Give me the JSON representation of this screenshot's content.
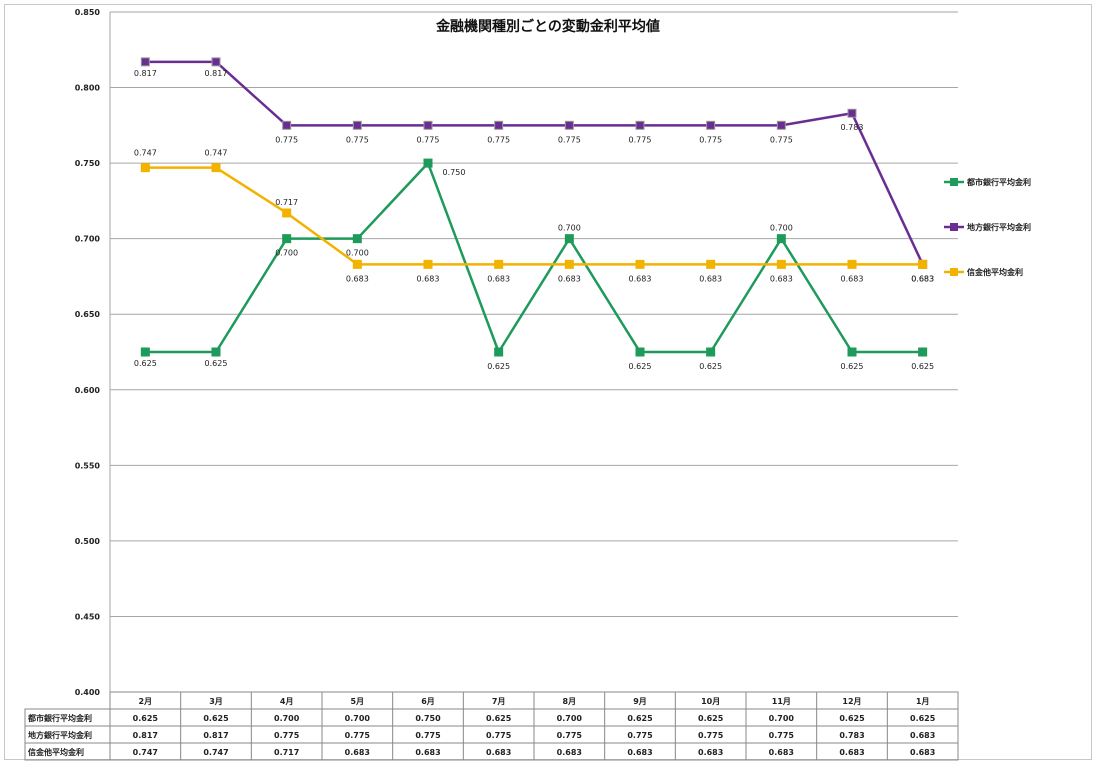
{
  "chart_data": {
    "type": "line",
    "title": "金融機関種別ごとの変動金利平均値",
    "categories": [
      "2月",
      "3月",
      "4月",
      "5月",
      "6月",
      "7月",
      "8月",
      "9月",
      "10月",
      "11月",
      "12月",
      "1月"
    ],
    "ylim": [
      0.4,
      0.85
    ],
    "yticks": [
      "0.400",
      "0.450",
      "0.500",
      "0.550",
      "0.600",
      "0.650",
      "0.700",
      "0.750",
      "0.800",
      "0.850"
    ],
    "grid": true,
    "legend_position": "right",
    "series": [
      {
        "name": "都市銀行平均金利",
        "color": "#1e9a5a",
        "values": [
          0.625,
          0.625,
          0.7,
          0.7,
          0.75,
          0.625,
          0.7,
          0.625,
          0.625,
          0.7,
          0.625,
          0.625
        ],
        "labels": [
          "0.625",
          "0.625",
          "0.700",
          "0.700",
          "0.750",
          "0.625",
          "0.700",
          "0.625",
          "0.625",
          "0.700",
          "0.625",
          "0.625"
        ]
      },
      {
        "name": "地方銀行平均金利",
        "color": "#6a2d92",
        "values": [
          0.817,
          0.817,
          0.775,
          0.775,
          0.775,
          0.775,
          0.775,
          0.775,
          0.775,
          0.775,
          0.783,
          0.683
        ],
        "labels": [
          "0.817",
          "0.817",
          "0.775",
          "0.775",
          "0.775",
          "0.775",
          "0.775",
          "0.775",
          "0.775",
          "0.775",
          "0.783",
          "0.683"
        ]
      },
      {
        "name": "信金他平均金利",
        "color": "#f2b200",
        "values": [
          0.747,
          0.747,
          0.717,
          0.683,
          0.683,
          0.683,
          0.683,
          0.683,
          0.683,
          0.683,
          0.683,
          0.683
        ],
        "labels": [
          "0.747",
          "0.747",
          "0.717",
          "0.683",
          "0.683",
          "0.683",
          "0.683",
          "0.683",
          "0.683",
          "0.683",
          "0.683",
          "0.683"
        ]
      }
    ]
  }
}
